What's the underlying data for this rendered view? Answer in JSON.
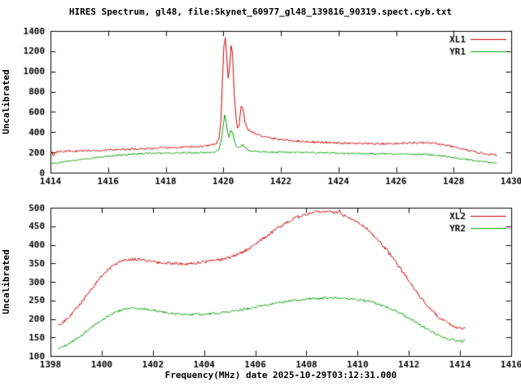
{
  "title": "HIRES Spectrum, gl48, file:Skynet_60977_gl48_139816_90319.spect.cyb.txt",
  "xlabel": "Frequency(MHz) date 2025-10-29T03:12:31.000",
  "colors": {
    "line_red": "#cc0000",
    "line_green": "#00a000",
    "axis": "#000000",
    "background": "#ffffff",
    "text": "#000000"
  },
  "chart_data": [
    {
      "type": "line",
      "ylabel": "Uncalibrated",
      "xlim": [
        1414,
        1430
      ],
      "ylim": [
        0,
        1400
      ],
      "xticks": [
        1414,
        1416,
        1418,
        1420,
        1422,
        1424,
        1426,
        1428,
        1430
      ],
      "yticks": [
        0,
        200,
        400,
        600,
        800,
        1000,
        1200,
        1400
      ],
      "grid": false,
      "legend_position": "top-right",
      "series": [
        {
          "name": "XL1",
          "color": "#cc0000",
          "noise": 10,
          "points": [
            [
              1414.0,
              200
            ],
            [
              1414.05,
              210
            ],
            [
              1414.1,
              160
            ],
            [
              1414.15,
              205
            ],
            [
              1414.3,
              208
            ],
            [
              1414.6,
              212
            ],
            [
              1415,
              215
            ],
            [
              1415.4,
              218
            ],
            [
              1415.8,
              222
            ],
            [
              1416.2,
              226
            ],
            [
              1416.6,
              230
            ],
            [
              1417,
              235
            ],
            [
              1417.4,
              239
            ],
            [
              1417.8,
              243
            ],
            [
              1418.2,
              247
            ],
            [
              1418.6,
              251
            ],
            [
              1419,
              256
            ],
            [
              1419.3,
              262
            ],
            [
              1419.6,
              272
            ],
            [
              1419.75,
              285
            ],
            [
              1419.85,
              330
            ],
            [
              1419.92,
              520
            ],
            [
              1419.97,
              900
            ],
            [
              1420.02,
              1240
            ],
            [
              1420.07,
              1335
            ],
            [
              1420.12,
              1150
            ],
            [
              1420.17,
              930
            ],
            [
              1420.22,
              1040
            ],
            [
              1420.27,
              1250
            ],
            [
              1420.32,
              1180
            ],
            [
              1420.38,
              780
            ],
            [
              1420.45,
              520
            ],
            [
              1420.5,
              450
            ],
            [
              1420.55,
              470
            ],
            [
              1420.62,
              660
            ],
            [
              1420.68,
              640
            ],
            [
              1420.75,
              500
            ],
            [
              1420.85,
              430
            ],
            [
              1421,
              400
            ],
            [
              1421.2,
              375
            ],
            [
              1421.5,
              350
            ],
            [
              1421.8,
              335
            ],
            [
              1422.2,
              322
            ],
            [
              1422.6,
              312
            ],
            [
              1423,
              305
            ],
            [
              1423.5,
              298
            ],
            [
              1424,
              292
            ],
            [
              1424.5,
              288
            ],
            [
              1425,
              286
            ],
            [
              1425.5,
              285
            ],
            [
              1426,
              288
            ],
            [
              1426.3,
              292
            ],
            [
              1426.7,
              295
            ],
            [
              1427,
              294
            ],
            [
              1427.3,
              290
            ],
            [
              1427.6,
              278
            ],
            [
              1427.9,
              260
            ],
            [
              1428.2,
              240
            ],
            [
              1428.5,
              220
            ],
            [
              1428.8,
              202
            ],
            [
              1429.1,
              188
            ],
            [
              1429.3,
              180
            ],
            [
              1429.5,
              172
            ]
          ]
        },
        {
          "name": "YR1",
          "color": "#00a000",
          "noise": 8,
          "points": [
            [
              1414.0,
              88
            ],
            [
              1414.3,
              100
            ],
            [
              1414.6,
              112
            ],
            [
              1415,
              128
            ],
            [
              1415.4,
              142
            ],
            [
              1415.8,
              156
            ],
            [
              1416.2,
              168
            ],
            [
              1416.6,
              178
            ],
            [
              1417,
              186
            ],
            [
              1417.4,
              191
            ],
            [
              1417.8,
              194
            ],
            [
              1418.2,
              195
            ],
            [
              1418.6,
              196
            ],
            [
              1419,
              197
            ],
            [
              1419.4,
              199
            ],
            [
              1419.7,
              204
            ],
            [
              1419.85,
              225
            ],
            [
              1419.95,
              340
            ],
            [
              1420.0,
              470
            ],
            [
              1420.05,
              565
            ],
            [
              1420.1,
              500
            ],
            [
              1420.15,
              400
            ],
            [
              1420.2,
              355
            ],
            [
              1420.27,
              420
            ],
            [
              1420.33,
              390
            ],
            [
              1420.4,
              300
            ],
            [
              1420.5,
              240
            ],
            [
              1420.6,
              255
            ],
            [
              1420.68,
              275
            ],
            [
              1420.78,
              245
            ],
            [
              1420.9,
              220
            ],
            [
              1421.1,
              210
            ],
            [
              1421.5,
              206
            ],
            [
              1422,
              202
            ],
            [
              1422.5,
              199
            ],
            [
              1423,
              197
            ],
            [
              1423.5,
              195
            ],
            [
              1424,
              192
            ],
            [
              1424.5,
              190
            ],
            [
              1425,
              188
            ],
            [
              1425.5,
              187
            ],
            [
              1426,
              186
            ],
            [
              1426.5,
              184
            ],
            [
              1427,
              180
            ],
            [
              1427.3,
              174
            ],
            [
              1427.6,
              165
            ],
            [
              1427.9,
              153
            ],
            [
              1428.2,
              140
            ],
            [
              1428.5,
              128
            ],
            [
              1428.8,
              116
            ],
            [
              1429.1,
              106
            ],
            [
              1429.3,
              100
            ],
            [
              1429.5,
              94
            ]
          ]
        }
      ]
    },
    {
      "type": "line",
      "ylabel": "Uncalibrated",
      "xlim": [
        1398,
        1416
      ],
      "ylim": [
        100,
        500
      ],
      "xticks": [
        1398,
        1400,
        1402,
        1404,
        1406,
        1408,
        1410,
        1412,
        1414,
        1416
      ],
      "yticks": [
        100,
        150,
        200,
        250,
        300,
        350,
        400,
        450,
        500
      ],
      "grid": false,
      "legend_position": "top-right",
      "series": [
        {
          "name": "XL2",
          "color": "#cc0000",
          "noise": 4,
          "points": [
            [
              1398.3,
              183
            ],
            [
              1398.5,
              192
            ],
            [
              1398.8,
              212
            ],
            [
              1399.1,
              236
            ],
            [
              1399.4,
              262
            ],
            [
              1399.7,
              290
            ],
            [
              1400,
              316
            ],
            [
              1400.3,
              336
            ],
            [
              1400.6,
              350
            ],
            [
              1400.9,
              358
            ],
            [
              1401.2,
              361
            ],
            [
              1401.5,
              360
            ],
            [
              1401.8,
              357
            ],
            [
              1402.1,
              354
            ],
            [
              1402.4,
              352
            ],
            [
              1402.7,
              350
            ],
            [
              1403,
              349
            ],
            [
              1403.3,
              349
            ],
            [
              1403.6,
              350
            ],
            [
              1403.9,
              353
            ],
            [
              1404.2,
              356
            ],
            [
              1404.5,
              358
            ],
            [
              1404.8,
              362
            ],
            [
              1405.1,
              368
            ],
            [
              1405.4,
              377
            ],
            [
              1405.7,
              388
            ],
            [
              1406,
              401
            ],
            [
              1406.3,
              416
            ],
            [
              1406.6,
              431
            ],
            [
              1406.9,
              446
            ],
            [
              1407.2,
              459
            ],
            [
              1407.5,
              470
            ],
            [
              1407.8,
              479
            ],
            [
              1408.1,
              485
            ],
            [
              1408.4,
              489
            ],
            [
              1408.7,
              490
            ],
            [
              1409,
              488
            ],
            [
              1409.2,
              485
            ],
            [
              1409.28,
              497
            ],
            [
              1409.33,
              483
            ],
            [
              1409.6,
              477
            ],
            [
              1409.9,
              466
            ],
            [
              1410.2,
              452
            ],
            [
              1410.5,
              434
            ],
            [
              1410.8,
              413
            ],
            [
              1411.1,
              389
            ],
            [
              1411.4,
              362
            ],
            [
              1411.7,
              333
            ],
            [
              1412,
              303
            ],
            [
              1412.3,
              273
            ],
            [
              1412.6,
              246
            ],
            [
              1412.9,
              222
            ],
            [
              1413.2,
              203
            ],
            [
              1413.5,
              189
            ],
            [
              1413.8,
              179
            ],
            [
              1414,
              174
            ],
            [
              1414.1,
              172
            ],
            [
              1414.2,
              179
            ]
          ]
        },
        {
          "name": "YR2",
          "color": "#00a000",
          "noise": 3,
          "points": [
            [
              1398.3,
              119
            ],
            [
              1398.5,
              125
            ],
            [
              1398.8,
              136
            ],
            [
              1399.1,
              150
            ],
            [
              1399.4,
              166
            ],
            [
              1399.7,
              182
            ],
            [
              1400,
              197
            ],
            [
              1400.3,
              210
            ],
            [
              1400.6,
              220
            ],
            [
              1400.9,
              227
            ],
            [
              1401.2,
              230
            ],
            [
              1401.5,
              229
            ],
            [
              1401.8,
              226
            ],
            [
              1402.1,
              222
            ],
            [
              1402.4,
              218
            ],
            [
              1402.7,
              215
            ],
            [
              1403,
              213
            ],
            [
              1403.3,
              212
            ],
            [
              1403.6,
              212
            ],
            [
              1403.9,
              213
            ],
            [
              1404.2,
              214
            ],
            [
              1404.5,
              216
            ],
            [
              1404.8,
              218
            ],
            [
              1405.1,
              221
            ],
            [
              1405.4,
              224
            ],
            [
              1405.7,
              228
            ],
            [
              1406,
              232
            ],
            [
              1406.3,
              236
            ],
            [
              1406.6,
              240
            ],
            [
              1406.9,
              244
            ],
            [
              1407.2,
              247
            ],
            [
              1407.5,
              250
            ],
            [
              1407.8,
              252
            ],
            [
              1408.1,
              254
            ],
            [
              1408.4,
              255
            ],
            [
              1408.7,
              256
            ],
            [
              1409,
              256
            ],
            [
              1409.3,
              256
            ],
            [
              1409.6,
              255
            ],
            [
              1409.9,
              253
            ],
            [
              1410.2,
              250
            ],
            [
              1410.5,
              246
            ],
            [
              1410.8,
              240
            ],
            [
              1411.1,
              233
            ],
            [
              1411.4,
              224
            ],
            [
              1411.7,
              214
            ],
            [
              1412,
              202
            ],
            [
              1412.3,
              190
            ],
            [
              1412.6,
              177
            ],
            [
              1412.9,
              165
            ],
            [
              1413.2,
              155
            ],
            [
              1413.5,
              147
            ],
            [
              1413.8,
              142
            ],
            [
              1414,
              140
            ],
            [
              1414.1,
              140
            ],
            [
              1414.2,
              143
            ]
          ]
        }
      ]
    }
  ]
}
